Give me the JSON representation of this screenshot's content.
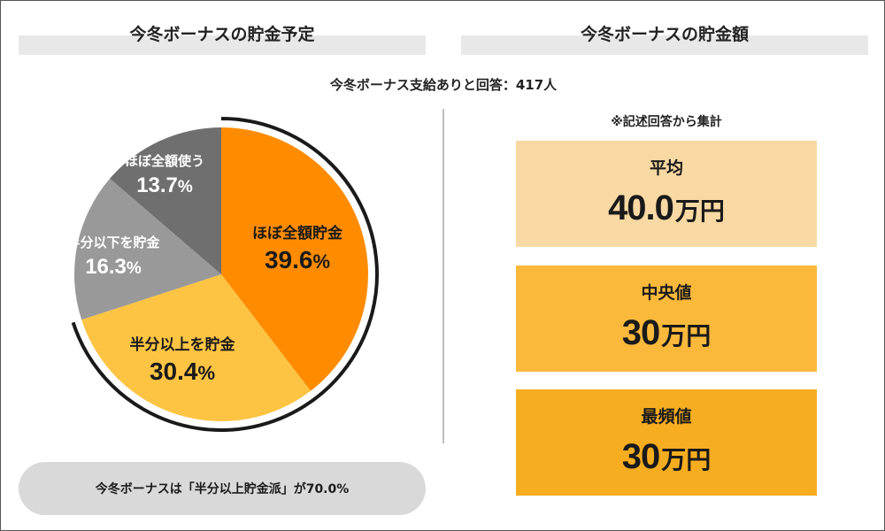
{
  "left_panel": {
    "title": "今冬ボーナスの貯金予定",
    "summary": "今冬ボーナスは「半分以上貯金派」が70.0%"
  },
  "right_panel": {
    "title": "今冬ボーナスの貯金額",
    "note": "※記述回答から集計",
    "stats": {
      "mean": {
        "label": "平均",
        "value": "40.0",
        "unit": "万円"
      },
      "median": {
        "label": "中央値",
        "value": "30",
        "unit": "万円"
      },
      "mode": {
        "label": "最頻値",
        "value": "30",
        "unit": "万円"
      }
    }
  },
  "respondents": "今冬ボーナス支給ありと回答：417人",
  "colors": {
    "almost_all_save": "#ff8c00",
    "half_or_more_save": "#fdc444",
    "less_than_half_save": "#999999",
    "almost_all_spend": "#6f6f6f",
    "arc": "#1a1a1a"
  },
  "chart_data": {
    "type": "pie",
    "title": "今冬ボーナスの貯金予定",
    "unit": "%",
    "slices": [
      {
        "label": "ほぼ全額貯金",
        "value": 39.6,
        "value_text": "39.6",
        "color": "#ff8c00"
      },
      {
        "label": "半分以上を貯金",
        "value": 30.4,
        "value_text": "30.4",
        "color": "#fdc444"
      },
      {
        "label": "半分以下を貯金",
        "value": 16.3,
        "value_text": "16.3",
        "color": "#999999"
      },
      {
        "label": "ほぼ全額使う",
        "value": 13.7,
        "value_text": "13.7",
        "color": "#6f6f6f"
      }
    ],
    "highlight": {
      "label": "半分以上貯金派",
      "value": 70.0
    }
  }
}
